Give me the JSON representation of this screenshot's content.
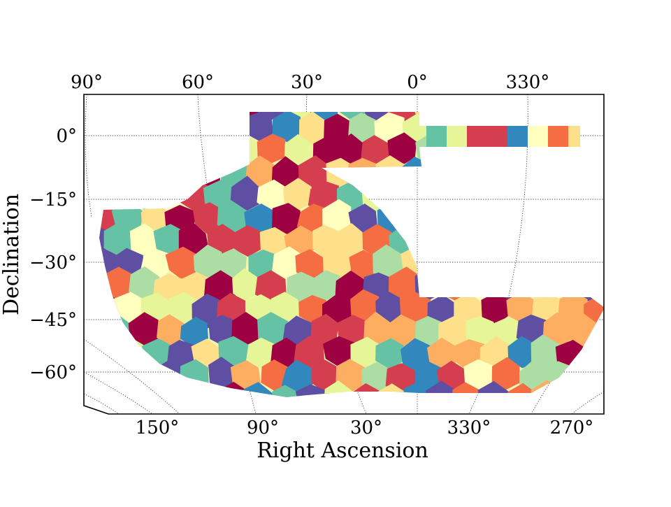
{
  "chart_data": {
    "type": "scatter",
    "title": "",
    "xlabel": "Right Ascension",
    "ylabel": "Declination",
    "projection": "mollweide-like footprint map",
    "top_ra_ticks": [
      "90°",
      "60°",
      "30°",
      "0°",
      "330°"
    ],
    "bottom_ra_ticks": [
      "150°",
      "90°",
      "30°",
      "330°",
      "270°"
    ],
    "dec_ticks": [
      "0°",
      "−15°",
      "−30°",
      "−45°",
      "−60°"
    ],
    "dec_tick_values": [
      0,
      -15,
      -30,
      -45,
      -60
    ],
    "palette": [
      "#9e0142",
      "#d53e4f",
      "#f46d43",
      "#fdae61",
      "#fee08b",
      "#ffffbf",
      "#e6f598",
      "#abdda4",
      "#66c2a5",
      "#3288bd",
      "#5e4fa2"
    ],
    "patch_count_estimate": 300,
    "legend": "none",
    "grid": true
  }
}
